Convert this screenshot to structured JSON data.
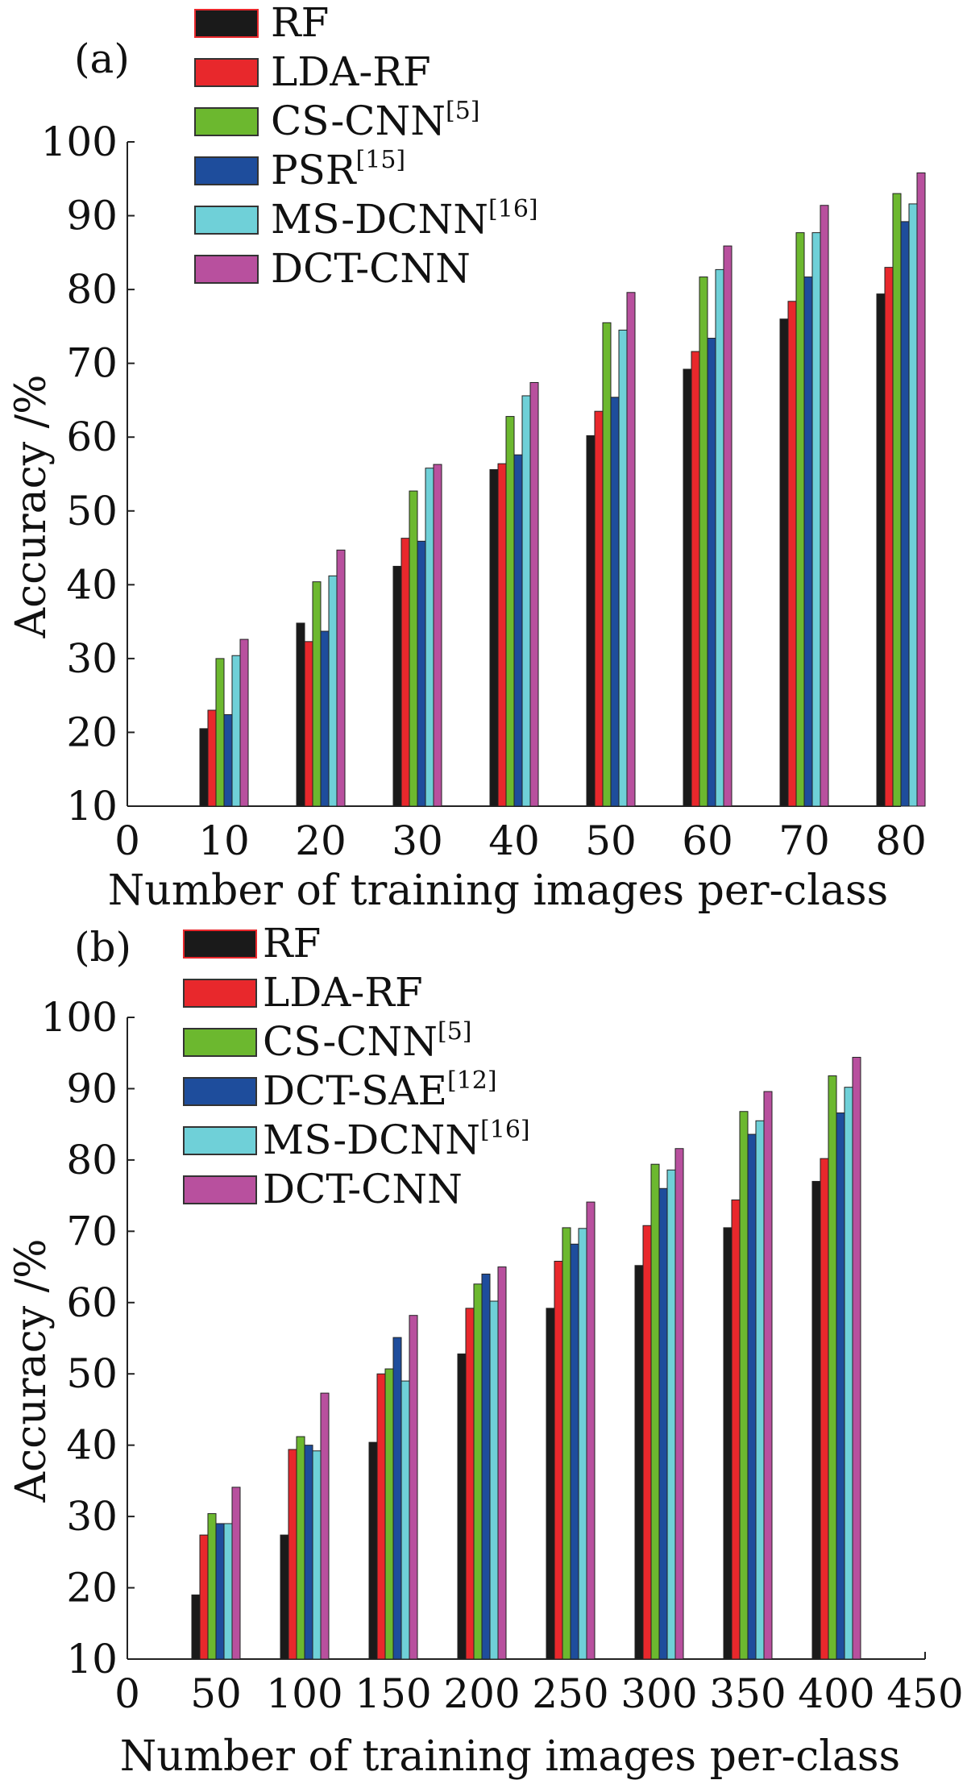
{
  "colors": {
    "RF": "#1a1a1a",
    "LDA-RF": "#e8282c",
    "CS-CNN": "#6cb82f",
    "PSR": "#1e4d9c",
    "DCT-SAE": "#1e4d9c",
    "MS-DCNN": "#6fd0d8",
    "DCT-CNN": "#b8509e"
  },
  "chart_data": [
    {
      "type": "bar",
      "panel_label": "(a)",
      "xlabel": "Number of training images per-class",
      "ylabel": "Accuracy /%",
      "xlim": [
        0,
        80
      ],
      "ylim": [
        10,
        100
      ],
      "xticks": [
        "0",
        "10",
        "20",
        "30",
        "40",
        "50",
        "60",
        "70",
        "80"
      ],
      "yticks": [
        "10",
        "20",
        "30",
        "40",
        "50",
        "60",
        "70",
        "80",
        "90",
        "100"
      ],
      "categories": [
        10,
        20,
        30,
        40,
        50,
        60,
        70,
        80
      ],
      "legend_position": "top-left",
      "series": [
        {
          "name": "RF",
          "ref": "",
          "values": [
            20.5,
            34.8,
            42.5,
            55.6,
            60.2,
            69.2,
            76.0,
            79.4
          ]
        },
        {
          "name": "LDA-RF",
          "ref": "",
          "values": [
            23.0,
            32.3,
            46.3,
            56.4,
            63.5,
            71.6,
            78.4,
            83.0
          ]
        },
        {
          "name": "CS-CNN",
          "ref": "[5]",
          "values": [
            30.0,
            40.4,
            52.7,
            62.8,
            75.5,
            81.7,
            87.7,
            93.0
          ]
        },
        {
          "name": "PSR",
          "ref": "[15]",
          "values": [
            22.4,
            33.7,
            45.9,
            57.6,
            65.4,
            73.4,
            81.7,
            89.2
          ]
        },
        {
          "name": "MS-DCNN",
          "ref": "[16]",
          "values": [
            30.4,
            41.2,
            55.8,
            65.6,
            74.5,
            82.7,
            87.7,
            91.6
          ]
        },
        {
          "name": "DCT-CNN",
          "ref": "",
          "values": [
            32.6,
            44.7,
            56.3,
            67.4,
            79.6,
            85.9,
            91.4,
            95.8
          ]
        }
      ]
    },
    {
      "type": "bar",
      "panel_label": "(b)",
      "xlabel": "Number of training images per-class",
      "ylabel": "Accuracy /%",
      "xlim": [
        0,
        450
      ],
      "ylim": [
        10,
        100
      ],
      "xticks": [
        "0",
        "50",
        "100",
        "150",
        "200",
        "250",
        "300",
        "350",
        "400",
        "450"
      ],
      "yticks": [
        "10",
        "20",
        "30",
        "40",
        "50",
        "60",
        "70",
        "80",
        "90",
        "100"
      ],
      "categories": [
        50,
        100,
        150,
        200,
        250,
        300,
        350,
        400
      ],
      "legend_position": "top-left",
      "series": [
        {
          "name": "RF",
          "ref": "",
          "values": [
            19.0,
            27.4,
            40.4,
            52.8,
            59.2,
            65.2,
            70.5,
            77.0
          ]
        },
        {
          "name": "LDA-RF",
          "ref": "",
          "values": [
            27.4,
            39.4,
            50.0,
            59.2,
            65.8,
            70.8,
            74.4,
            80.2
          ]
        },
        {
          "name": "CS-CNN",
          "ref": "[5]",
          "values": [
            30.4,
            41.2,
            50.7,
            62.6,
            70.5,
            79.4,
            86.8,
            91.8
          ]
        },
        {
          "name": "DCT-SAE",
          "ref": "[12]",
          "values": [
            29.0,
            40.0,
            55.1,
            64.0,
            68.2,
            76.0,
            83.6,
            86.6
          ]
        },
        {
          "name": "MS-DCNN",
          "ref": "[16]",
          "values": [
            29.0,
            39.2,
            49.0,
            60.2,
            70.4,
            78.6,
            85.5,
            90.2
          ]
        },
        {
          "name": "DCT-CNN",
          "ref": "",
          "values": [
            34.1,
            47.3,
            58.2,
            65.0,
            74.1,
            81.6,
            89.6,
            94.4
          ]
        }
      ]
    }
  ]
}
